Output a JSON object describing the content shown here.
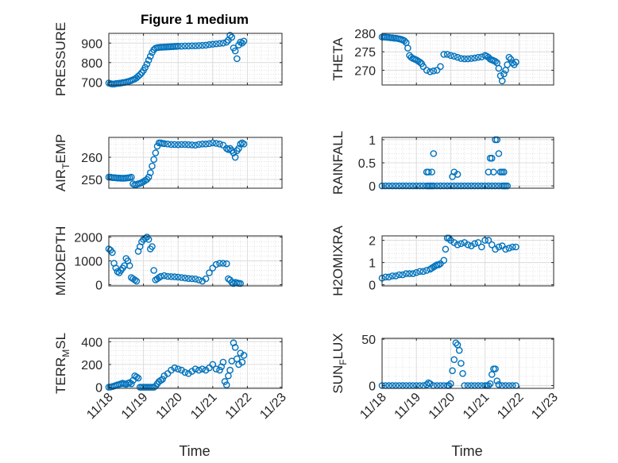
{
  "chart_data": [
    {
      "type": "scatter",
      "title": "Figure 1 medium",
      "ylabel": "PRESSURE",
      "xlim": [
        "11/18",
        "11/23"
      ],
      "ylim": [
        685,
        950
      ],
      "yticks": [
        700,
        800,
        900
      ],
      "xticks": [
        "11/18",
        "11/19",
        "11/20",
        "11/21",
        "11/22",
        "11/23"
      ],
      "grid": true,
      "series": [
        {
          "x": [
            0.0,
            0.05,
            0.1,
            0.15,
            0.2,
            0.25,
            0.3,
            0.35,
            0.4,
            0.45,
            0.5,
            0.55,
            0.6,
            0.65,
            0.7,
            0.75,
            0.8,
            0.85,
            0.9,
            0.95,
            1.0,
            1.05,
            1.1,
            1.15,
            1.2,
            1.25,
            1.3,
            1.35,
            1.4,
            1.45,
            1.5,
            1.55,
            1.6,
            1.65,
            1.7,
            1.75,
            1.8,
            1.85,
            1.9,
            1.95,
            2.0,
            2.1,
            2.2,
            2.3,
            2.4,
            2.5,
            2.6,
            2.7,
            2.8,
            2.9,
            3.0,
            3.1,
            3.2,
            3.3,
            3.4,
            3.45,
            3.5,
            3.55,
            3.6,
            3.65,
            3.7,
            3.75,
            3.8,
            3.85,
            3.9
          ],
          "y": [
            695,
            692,
            690,
            690,
            692,
            693,
            694,
            695,
            697,
            698,
            700,
            702,
            705,
            708,
            712,
            716,
            722,
            730,
            738,
            748,
            760,
            775,
            792,
            812,
            832,
            852,
            866,
            874,
            877,
            878,
            879,
            879,
            880,
            880,
            881,
            881,
            882,
            882,
            883,
            883,
            884,
            884,
            885,
            885,
            886,
            886,
            887,
            888,
            889,
            892,
            894,
            896,
            898,
            900,
            905,
            915,
            940,
            930,
            875,
            860,
            820,
            890,
            905,
            900,
            910
          ]
        }
      ]
    },
    {
      "type": "scatter",
      "ylabel": "THETA",
      "xlim": [
        "11/18",
        "11/23"
      ],
      "ylim": [
        266,
        280
      ],
      "yticks": [
        270,
        275,
        280
      ],
      "xticks": [
        "11/18",
        "11/19",
        "11/20",
        "11/21",
        "11/22",
        "11/23"
      ],
      "grid": true,
      "series": [
        {
          "x": [
            0.0,
            0.05,
            0.1,
            0.15,
            0.2,
            0.25,
            0.3,
            0.35,
            0.4,
            0.45,
            0.5,
            0.55,
            0.6,
            0.65,
            0.7,
            0.75,
            0.8,
            0.85,
            0.9,
            0.95,
            1.0,
            1.05,
            1.1,
            1.15,
            1.2,
            1.3,
            1.4,
            1.5,
            1.6,
            1.7,
            1.8,
            1.9,
            2.0,
            2.1,
            2.2,
            2.3,
            2.4,
            2.5,
            2.6,
            2.7,
            2.8,
            2.9,
            3.0,
            3.05,
            3.1,
            3.15,
            3.2,
            3.25,
            3.3,
            3.35,
            3.4,
            3.45,
            3.5,
            3.55,
            3.6,
            3.65,
            3.7,
            3.75,
            3.8,
            3.85,
            3.9
          ],
          "y": [
            279,
            279,
            279,
            278.9,
            278.9,
            278.8,
            278.8,
            278.7,
            278.7,
            278.6,
            278.5,
            278.4,
            278.2,
            278,
            277.5,
            276,
            274,
            273.5,
            273.2,
            273,
            272.8,
            272.5,
            272.2,
            271.8,
            271,
            270,
            269.6,
            269.8,
            270,
            271,
            274.3,
            274.3,
            274,
            273.8,
            273.5,
            273.2,
            273.1,
            273.1,
            273.2,
            273.3,
            273.5,
            273.6,
            274,
            273.8,
            273.5,
            273,
            272.8,
            272.6,
            272.4,
            272,
            270.5,
            268.5,
            267.1,
            269,
            270,
            271.5,
            273.5,
            273,
            272,
            271.5,
            272.2
          ]
        }
      ]
    },
    {
      "type": "scatter",
      "ylabel": "AIR_TEMP",
      "xlim": [
        "11/18",
        "11/23"
      ],
      "ylim": [
        246,
        269
      ],
      "yticks": [
        250,
        260
      ],
      "xticks": [
        "11/18",
        "11/19",
        "11/20",
        "11/21",
        "11/22",
        "11/23"
      ],
      "grid": true,
      "series": [
        {
          "x": [
            0.0,
            0.05,
            0.1,
            0.15,
            0.2,
            0.25,
            0.3,
            0.35,
            0.4,
            0.45,
            0.5,
            0.55,
            0.6,
            0.65,
            0.7,
            0.75,
            0.8,
            0.85,
            0.9,
            0.95,
            1.0,
            1.05,
            1.1,
            1.15,
            1.2,
            1.25,
            1.3,
            1.35,
            1.4,
            1.45,
            1.5,
            1.55,
            1.6,
            1.7,
            1.8,
            1.9,
            2.0,
            2.1,
            2.2,
            2.3,
            2.4,
            2.5,
            2.6,
            2.7,
            2.8,
            2.9,
            3.0,
            3.1,
            3.2,
            3.3,
            3.4,
            3.45,
            3.5,
            3.55,
            3.6,
            3.65,
            3.7,
            3.75,
            3.8,
            3.85,
            3.9
          ],
          "y": [
            251,
            251,
            250.8,
            250.8,
            250.7,
            250.6,
            250.6,
            250.5,
            250.5,
            250.5,
            250.6,
            250.7,
            250.8,
            251,
            248,
            247.5,
            247.7,
            248,
            248.2,
            248.5,
            249,
            249.5,
            250,
            251,
            253,
            256,
            259,
            262,
            265,
            266.5,
            266.5,
            266.3,
            266.2,
            266,
            265.8,
            265.8,
            265.7,
            265.8,
            265.8,
            265.7,
            265.6,
            265.5,
            265.8,
            266,
            266,
            266.2,
            266.5,
            266.3,
            266,
            265.5,
            264,
            263.5,
            264,
            263,
            262,
            260,
            263,
            264,
            266,
            266.5,
            266
          ]
        }
      ]
    },
    {
      "type": "scatter",
      "ylabel": "RAINFALL",
      "xlim": [
        "11/18",
        "11/23"
      ],
      "ylim": [
        -0.05,
        1.05
      ],
      "yticks": [
        0,
        0.5,
        1
      ],
      "xticks": [
        "11/18",
        "11/19",
        "11/20",
        "11/21",
        "11/22",
        "11/23"
      ],
      "grid": true,
      "series": [
        {
          "x": [
            0.0,
            0.1,
            0.2,
            0.3,
            0.4,
            0.5,
            0.6,
            0.7,
            0.8,
            0.9,
            1.0,
            1.1,
            1.2,
            1.3,
            1.35,
            1.4,
            1.45,
            1.5,
            1.6,
            1.7,
            1.8,
            1.9,
            2.0,
            2.1,
            2.2,
            2.3,
            2.4,
            2.5,
            2.6,
            2.7,
            2.8,
            2.9,
            3.0,
            3.1,
            3.2,
            3.3,
            3.4,
            1.3,
            1.35,
            1.45,
            1.5,
            2.05,
            2.1,
            2.2,
            3.1,
            3.15,
            3.2,
            3.25,
            3.3,
            3.35,
            3.4,
            3.45,
            3.5,
            3.55,
            3.5,
            3.55,
            3.6,
            3.65
          ],
          "y": [
            0,
            0,
            0,
            0,
            0,
            0,
            0,
            0,
            0,
            0,
            0,
            0,
            0,
            0,
            0,
            0,
            0,
            0,
            0,
            0,
            0,
            0,
            0,
            0,
            0,
            0,
            0,
            0,
            0,
            0,
            0,
            0,
            0,
            0,
            0,
            0,
            0,
            0.3,
            0.3,
            0.3,
            0.7,
            0.2,
            0.3,
            0.25,
            0.3,
            0.6,
            0.6,
            0.3,
            1.0,
            1.0,
            0.7,
            0.3,
            0.3,
            0.3,
            0,
            0,
            0,
            0
          ]
        }
      ]
    },
    {
      "type": "scatter",
      "ylabel": "MIXDEPTH",
      "xlim": [
        "11/18",
        "11/23"
      ],
      "ylim": [
        -50,
        2050
      ],
      "yticks": [
        0,
        1000,
        2000
      ],
      "xticks": [
        "11/18",
        "11/19",
        "11/20",
        "11/21",
        "11/22",
        "11/23"
      ],
      "grid": true,
      "series": [
        {
          "x": [
            0.0,
            0.05,
            0.1,
            0.15,
            0.2,
            0.25,
            0.3,
            0.35,
            0.4,
            0.45,
            0.5,
            0.55,
            0.6,
            0.65,
            0.7,
            0.75,
            0.8,
            0.85,
            0.9,
            0.95,
            1.0,
            1.05,
            1.1,
            1.15,
            1.2,
            1.25,
            1.3,
            1.35,
            1.4,
            1.45,
            1.5,
            1.6,
            1.7,
            1.8,
            1.9,
            2.0,
            2.1,
            2.2,
            2.3,
            2.4,
            2.5,
            2.6,
            2.7,
            2.8,
            2.9,
            3.0,
            3.1,
            3.2,
            3.3,
            3.4,
            3.45,
            3.5,
            3.55,
            3.6,
            3.65,
            3.7,
            3.75,
            3.8
          ],
          "y": [
            1500,
            1450,
            1350,
            900,
            700,
            550,
            500,
            600,
            700,
            800,
            1100,
            1000,
            800,
            300,
            250,
            200,
            150,
            1400,
            1600,
            1800,
            1900,
            1950,
            2000,
            1900,
            1500,
            1600,
            600,
            200,
            250,
            300,
            350,
            380,
            350,
            340,
            330,
            320,
            300,
            280,
            260,
            250,
            240,
            200,
            150,
            250,
            500,
            700,
            850,
            900,
            900,
            880,
            250,
            200,
            100,
            50,
            100,
            80,
            60,
            50
          ]
        }
      ]
    },
    {
      "type": "scatter",
      "ylabel": "H2OMIXRA",
      "xlim": [
        "11/18",
        "11/23"
      ],
      "ylim": [
        -0.05,
        2.2
      ],
      "yticks": [
        0,
        1,
        2
      ],
      "xticks": [
        "11/18",
        "11/19",
        "11/20",
        "11/21",
        "11/22",
        "11/23"
      ],
      "grid": true,
      "series": [
        {
          "x": [
            0.0,
            0.1,
            0.2,
            0.3,
            0.4,
            0.5,
            0.6,
            0.7,
            0.8,
            0.9,
            1.0,
            1.1,
            1.2,
            1.3,
            1.4,
            1.45,
            1.5,
            1.55,
            1.6,
            1.65,
            1.7,
            1.8,
            1.85,
            1.9,
            1.95,
            2.0,
            2.1,
            2.2,
            2.3,
            2.4,
            2.5,
            2.6,
            2.7,
            2.8,
            2.9,
            3.0,
            3.1,
            3.2,
            3.3,
            3.4,
            3.5,
            3.6,
            3.7,
            3.8,
            3.9
          ],
          "y": [
            0.3,
            0.35,
            0.35,
            0.4,
            0.4,
            0.45,
            0.45,
            0.5,
            0.5,
            0.5,
            0.55,
            0.6,
            0.6,
            0.65,
            0.7,
            0.75,
            0.8,
            0.85,
            0.9,
            0.9,
            0.95,
            1.1,
            1.6,
            2.1,
            2.1,
            2.0,
            1.9,
            1.8,
            1.85,
            1.9,
            1.8,
            1.75,
            1.85,
            1.9,
            1.7,
            2.0,
            2.0,
            1.8,
            1.6,
            1.7,
            1.75,
            1.6,
            1.65,
            1.7,
            1.7
          ]
        }
      ]
    },
    {
      "type": "scatter",
      "ylabel": "TERR_MSL",
      "xlim": [
        "11/18",
        "11/23"
      ],
      "ylim": [
        -10,
        430
      ],
      "yticks": [
        0,
        200,
        400
      ],
      "xticks": [
        "11/18",
        "11/19",
        "11/20",
        "11/21",
        "11/22",
        "11/23"
      ],
      "grid": true,
      "series": [
        {
          "x": [
            0.0,
            0.05,
            0.1,
            0.15,
            0.2,
            0.25,
            0.3,
            0.35,
            0.4,
            0.45,
            0.5,
            0.55,
            0.6,
            0.65,
            0.7,
            0.75,
            0.8,
            0.85,
            0.9,
            0.95,
            1.0,
            1.05,
            1.1,
            1.15,
            1.2,
            1.25,
            1.3,
            1.35,
            1.4,
            1.45,
            1.5,
            1.55,
            1.6,
            1.7,
            1.8,
            1.9,
            2.0,
            2.1,
            2.2,
            2.3,
            2.4,
            2.5,
            2.6,
            2.7,
            2.8,
            2.9,
            3.0,
            3.1,
            3.2,
            3.25,
            3.3,
            3.35,
            3.4,
            3.45,
            3.5,
            3.55,
            3.6,
            3.65,
            3.7,
            3.75,
            3.8,
            3.85,
            3.9
          ],
          "y": [
            0,
            2,
            5,
            10,
            15,
            20,
            25,
            30,
            35,
            30,
            25,
            35,
            40,
            30,
            60,
            100,
            90,
            80,
            0,
            0,
            0,
            0,
            0,
            0,
            0,
            0,
            0,
            10,
            30,
            50,
            60,
            70,
            100,
            120,
            150,
            170,
            160,
            150,
            130,
            120,
            140,
            160,
            150,
            160,
            150,
            170,
            200,
            160,
            150,
            180,
            220,
            50,
            20,
            100,
            150,
            230,
            390,
            350,
            250,
            200,
            300,
            220,
            280
          ]
        }
      ]
    },
    {
      "type": "scatter",
      "ylabel": "SUN_FLUX",
      "xlim": [
        "11/18",
        "11/23"
      ],
      "ylim": [
        -3,
        51
      ],
      "yticks": [
        0,
        50
      ],
      "xticks": [
        "11/18",
        "11/19",
        "11/20",
        "11/21",
        "11/22",
        "11/23"
      ],
      "grid": true,
      "series": [
        {
          "x": [
            0.0,
            0.1,
            0.2,
            0.3,
            0.4,
            0.5,
            0.6,
            0.7,
            0.8,
            0.9,
            1.0,
            1.1,
            1.2,
            1.3,
            1.35,
            1.4,
            1.5,
            1.6,
            1.7,
            1.8,
            1.9,
            1.95,
            2.0,
            2.05,
            2.1,
            2.15,
            2.2,
            2.25,
            2.3,
            2.35,
            2.4,
            2.5,
            2.6,
            2.7,
            2.8,
            2.9,
            3.0,
            3.05,
            3.1,
            3.15,
            3.2,
            3.25,
            3.3,
            3.35,
            3.4,
            3.5,
            3.6,
            3.7,
            3.8,
            3.9
          ],
          "y": [
            0,
            0,
            0,
            0,
            0,
            0,
            0,
            0,
            0,
            0,
            0,
            0,
            0,
            1,
            3,
            2,
            0,
            0,
            0,
            0,
            0,
            0,
            2,
            16,
            28,
            46,
            44,
            38,
            24,
            13,
            0,
            0,
            0,
            0,
            0,
            0,
            0,
            0,
            0,
            2,
            12,
            18,
            18,
            5,
            1,
            0,
            0,
            0,
            0,
            0
          ]
        }
      ]
    }
  ],
  "xlabel_left": "Time",
  "xlabel_right": "Time"
}
